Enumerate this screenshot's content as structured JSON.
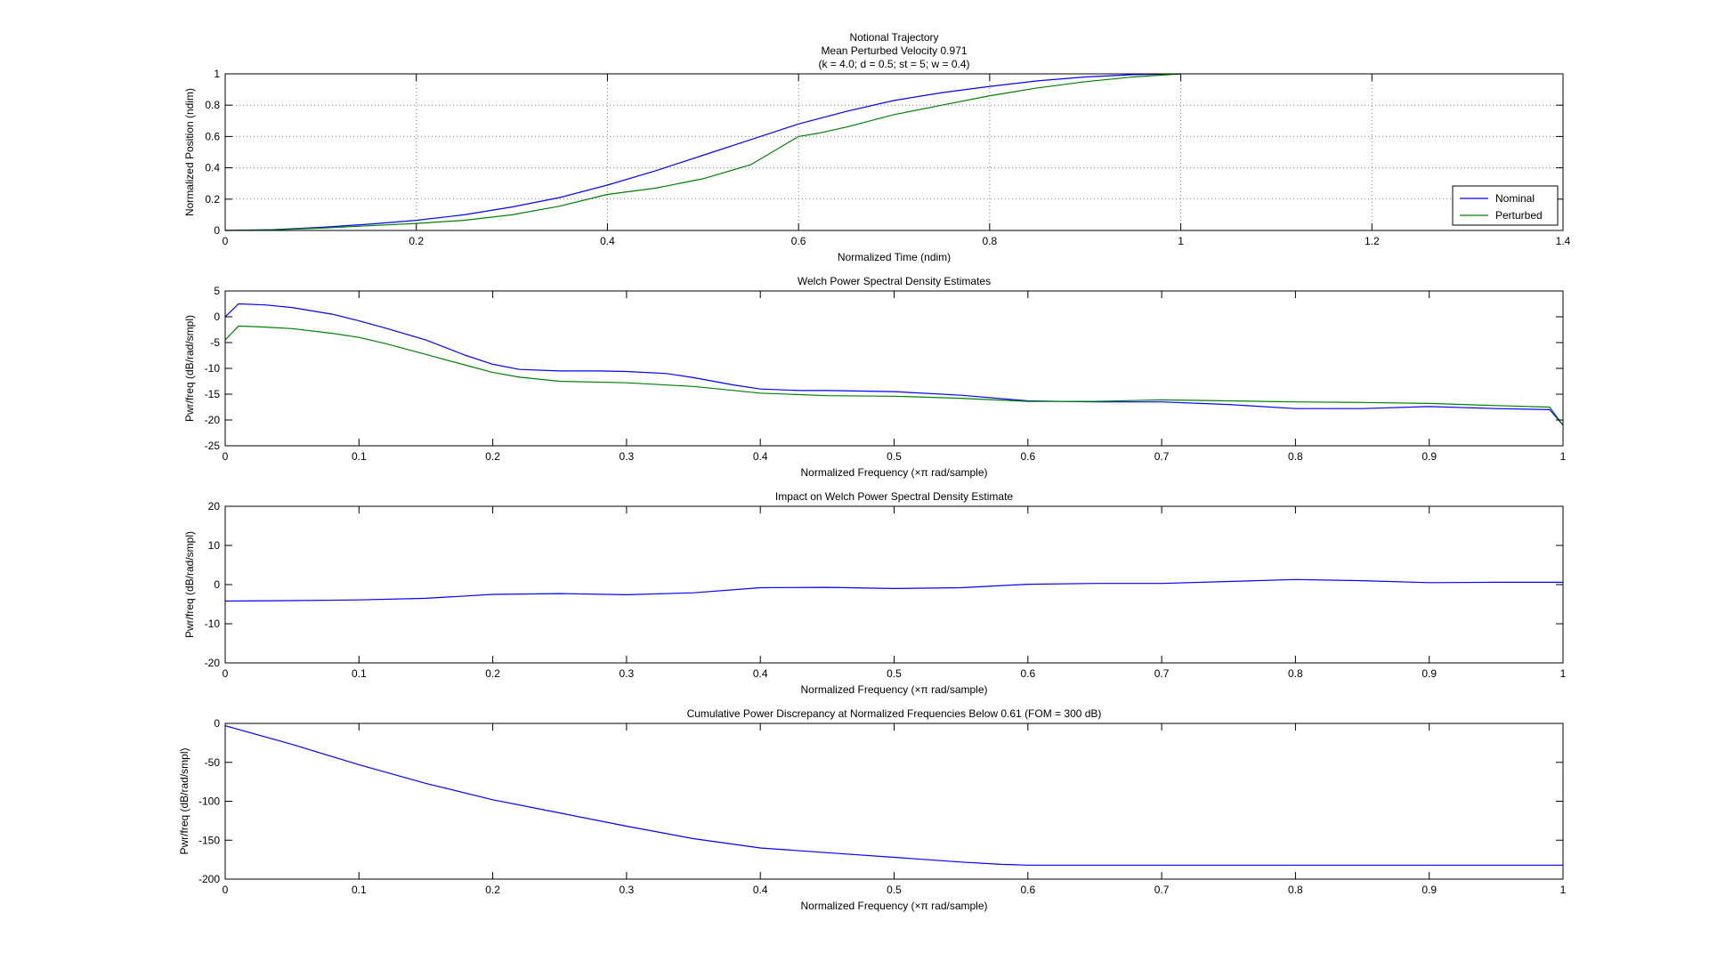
{
  "chart_data": [
    {
      "type": "line",
      "title": [
        "Notional Trajectory",
        "Mean Perturbed Velocity 0.971",
        "(k = 4.0; d = 0.5; st =  5; w = 0.4)"
      ],
      "xlabel": "Normalized Time (ndim)",
      "ylabel": "Normalized Position (ndim)",
      "xlim": [
        0,
        1.4
      ],
      "ylim": [
        0,
        1
      ],
      "xticks": [
        0,
        0.2,
        0.4,
        0.6,
        0.8,
        1,
        1.2,
        1.4
      ],
      "xtick_labels": [
        "0",
        "0.2",
        "0.4",
        "0.6",
        "0.8",
        "1",
        "1.2",
        "1.4"
      ],
      "yticks": [
        0,
        0.2,
        0.4,
        0.6,
        0.8,
        1
      ],
      "ytick_labels": [
        "0",
        "0.2",
        "0.4",
        "0.6",
        "0.8",
        "1"
      ],
      "grid": true,
      "legend": "bottom-right",
      "series": [
        {
          "name": "Nominal",
          "color": "#0000ff",
          "x": [
            0,
            0.05,
            0.1,
            0.15,
            0.2,
            0.25,
            0.3,
            0.35,
            0.4,
            0.45,
            0.5,
            0.55,
            0.6,
            0.65,
            0.7,
            0.75,
            0.8,
            0.85,
            0.9,
            0.95,
            1.0
          ],
          "y": [
            0,
            0.005,
            0.02,
            0.04,
            0.065,
            0.1,
            0.15,
            0.21,
            0.29,
            0.38,
            0.48,
            0.58,
            0.68,
            0.76,
            0.83,
            0.88,
            0.92,
            0.955,
            0.98,
            0.995,
            1.0
          ]
        },
        {
          "name": "Perturbed",
          "color": "#008000",
          "x": [
            0,
            0.05,
            0.1,
            0.15,
            0.2,
            0.25,
            0.3,
            0.35,
            0.4,
            0.45,
            0.5,
            0.55,
            0.6,
            0.62,
            0.65,
            0.7,
            0.75,
            0.8,
            0.85,
            0.9,
            0.95,
            1.0
          ],
          "y": [
            0,
            0.004,
            0.015,
            0.03,
            0.045,
            0.065,
            0.1,
            0.155,
            0.23,
            0.27,
            0.33,
            0.42,
            0.6,
            0.62,
            0.66,
            0.74,
            0.8,
            0.86,
            0.91,
            0.95,
            0.98,
            1.0
          ]
        }
      ]
    },
    {
      "type": "line",
      "title": [
        "Welch Power Spectral Density Estimates"
      ],
      "xlabel": "Normalized Frequency (×π rad/sample)",
      "ylabel": "Pwr/freq (dB/rad/smpl)",
      "xlim": [
        0,
        1
      ],
      "ylim": [
        -25,
        5
      ],
      "xticks": [
        0,
        0.1,
        0.2,
        0.3,
        0.4,
        0.5,
        0.6,
        0.7,
        0.8,
        0.9,
        1
      ],
      "xtick_labels": [
        "0",
        "0.1",
        "0.2",
        "0.3",
        "0.4",
        "0.5",
        "0.6",
        "0.7",
        "0.8",
        "0.9",
        "1"
      ],
      "yticks": [
        -25,
        -20,
        -15,
        -10,
        -5,
        0,
        5
      ],
      "ytick_labels": [
        "-25",
        "-20",
        "-15",
        "-10",
        "-5",
        "0",
        "5"
      ],
      "grid": false,
      "series": [
        {
          "name": "Nominal",
          "color": "#0000ff",
          "x": [
            0,
            0.01,
            0.03,
            0.05,
            0.08,
            0.1,
            0.12,
            0.15,
            0.18,
            0.2,
            0.22,
            0.25,
            0.28,
            0.3,
            0.33,
            0.35,
            0.38,
            0.4,
            0.43,
            0.45,
            0.5,
            0.55,
            0.6,
            0.65,
            0.7,
            0.75,
            0.8,
            0.85,
            0.9,
            0.95,
            0.99,
            1.0
          ],
          "y": [
            0,
            2.5,
            2.3,
            1.8,
            0.5,
            -0.8,
            -2.2,
            -4.5,
            -7.5,
            -9.2,
            -10.2,
            -10.5,
            -10.5,
            -10.6,
            -11.0,
            -11.8,
            -13.2,
            -14.0,
            -14.3,
            -14.3,
            -14.5,
            -15.2,
            -16.3,
            -16.5,
            -16.5,
            -17.0,
            -17.8,
            -17.8,
            -17.4,
            -17.8,
            -18.0,
            -21.0
          ]
        },
        {
          "name": "Perturbed",
          "color": "#008000",
          "x": [
            0,
            0.01,
            0.03,
            0.05,
            0.08,
            0.1,
            0.12,
            0.15,
            0.18,
            0.2,
            0.22,
            0.25,
            0.3,
            0.35,
            0.4,
            0.45,
            0.5,
            0.55,
            0.6,
            0.65,
            0.7,
            0.75,
            0.8,
            0.85,
            0.9,
            0.95,
            0.99,
            1.0
          ],
          "y": [
            -4.5,
            -1.8,
            -2.0,
            -2.3,
            -3.2,
            -4.0,
            -5.2,
            -7.3,
            -9.4,
            -10.8,
            -11.7,
            -12.5,
            -12.8,
            -13.5,
            -14.8,
            -15.3,
            -15.4,
            -15.8,
            -16.4,
            -16.4,
            -16.1,
            -16.3,
            -16.5,
            -16.6,
            -16.8,
            -17.2,
            -17.5,
            -21.0
          ]
        }
      ]
    },
    {
      "type": "line",
      "title": [
        "Impact on Welch Power Spectral Density Estimate"
      ],
      "xlabel": "Normalized Frequency (×π rad/sample)",
      "ylabel": "Pwr/freq (dB/rad/smpl)",
      "xlim": [
        0,
        1
      ],
      "ylim": [
        -20,
        20
      ],
      "xticks": [
        0,
        0.1,
        0.2,
        0.3,
        0.4,
        0.5,
        0.6,
        0.7,
        0.8,
        0.9,
        1
      ],
      "xtick_labels": [
        "0",
        "0.1",
        "0.2",
        "0.3",
        "0.4",
        "0.5",
        "0.6",
        "0.7",
        "0.8",
        "0.9",
        "1"
      ],
      "yticks": [
        -20,
        -10,
        0,
        10,
        20
      ],
      "ytick_labels": [
        "-20",
        "-10",
        "0",
        "10",
        "20"
      ],
      "grid": false,
      "series": [
        {
          "color": "#0000ff",
          "x": [
            0,
            0.05,
            0.1,
            0.15,
            0.2,
            0.25,
            0.3,
            0.35,
            0.4,
            0.45,
            0.5,
            0.55,
            0.6,
            0.65,
            0.7,
            0.75,
            0.8,
            0.85,
            0.9,
            0.95,
            1.0
          ],
          "y": [
            -4.2,
            -4.1,
            -3.9,
            -3.5,
            -2.5,
            -2.3,
            -2.6,
            -2.1,
            -0.8,
            -0.7,
            -1.0,
            -0.8,
            0.1,
            0.3,
            0.3,
            0.8,
            1.3,
            1.0,
            0.5,
            0.6,
            0.6
          ]
        }
      ]
    },
    {
      "type": "line",
      "title": [
        "Cumulative Power Discrepancy at Normalized Frequencies Below 0.61 (FOM = 300 dB)"
      ],
      "xlabel": "Normalized Frequency (×π rad/sample)",
      "ylabel": "Pwr/freq (dB/rad/smpl)",
      "xlim": [
        0,
        1
      ],
      "ylim": [
        -200,
        0
      ],
      "xticks": [
        0,
        0.1,
        0.2,
        0.3,
        0.4,
        0.5,
        0.6,
        0.7,
        0.8,
        0.9,
        1
      ],
      "xtick_labels": [
        "0",
        "0.1",
        "0.2",
        "0.3",
        "0.4",
        "0.5",
        "0.6",
        "0.7",
        "0.8",
        "0.9",
        "1"
      ],
      "yticks": [
        -200,
        -150,
        -100,
        -50,
        0
      ],
      "ytick_labels": [
        "-200",
        "-150",
        "-100",
        "-50",
        "0"
      ],
      "grid": false,
      "series": [
        {
          "color": "#0000ff",
          "x": [
            0,
            0.05,
            0.1,
            0.15,
            0.2,
            0.25,
            0.3,
            0.35,
            0.4,
            0.45,
            0.5,
            0.55,
            0.58,
            0.6,
            1.0
          ],
          "y": [
            -3,
            -27,
            -53,
            -77,
            -98,
            -115,
            -132,
            -148,
            -160,
            -166,
            -172,
            -178,
            -181,
            -182,
            -182
          ]
        }
      ]
    }
  ]
}
